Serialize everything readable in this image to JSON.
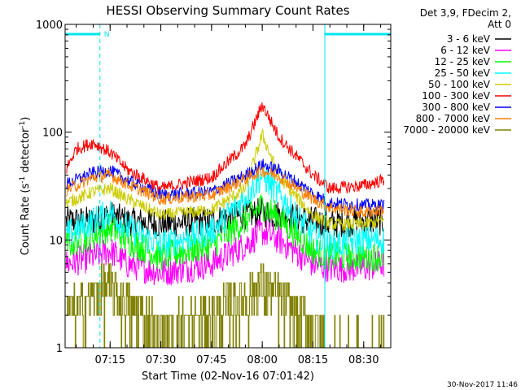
{
  "chart_data": {
    "type": "line",
    "title": "HESSI Observing Summary Count Rates",
    "xlabel": "Start Time (02-Nov-16 07:01:42)",
    "ylabel_main": "Count Rate (s",
    "ylabel_sup1": "-1",
    "ylabel_mid": " detector",
    "ylabel_sup2": "-1",
    "ylabel_end": ")",
    "y_scale": "log",
    "ylim": [
      1,
      1000
    ],
    "xlim": [
      "07:01:42",
      "08:38:00"
    ],
    "x_ticks": [
      "07:15",
      "07:30",
      "07:45",
      "08:00",
      "08:15",
      "08:30"
    ],
    "y_ticks": [
      "1",
      "10",
      "100",
      "1000"
    ],
    "legend_header": [
      "Det 3,9, FDecim 2,",
      "Att 0"
    ],
    "legend_placement": "right",
    "footer_timestamp": "30-Nov-2017 11:46",
    "annotations": [
      {
        "text": "N",
        "color": "#00e5ee"
      }
    ],
    "night_intervals": [
      [
        "07:01:42",
        "07:12:00"
      ],
      [
        "08:18:30",
        "08:38:00"
      ]
    ],
    "series": [
      {
        "name": "3 - 6 keV",
        "color": "#000000",
        "x": [
          "07:02",
          "07:10",
          "07:15",
          "07:20",
          "07:30",
          "07:45",
          "07:55",
          "08:00",
          "08:05",
          "08:15",
          "08:20",
          "08:30",
          "08:36"
        ],
        "values": [
          15,
          15,
          17,
          15,
          14,
          15,
          17,
          18,
          17,
          15,
          14,
          15,
          15
        ]
      },
      {
        "name": "6 - 12 keV",
        "color": "#ff00ff",
        "x": [
          "07:02",
          "07:10",
          "07:15",
          "07:20",
          "07:30",
          "07:45",
          "07:55",
          "08:00",
          "08:05",
          "08:15",
          "08:20",
          "08:30",
          "08:36"
        ],
        "values": [
          6,
          7,
          8,
          6,
          5,
          6,
          9,
          12,
          10,
          6,
          5.5,
          5.5,
          6
        ]
      },
      {
        "name": "12 - 25 keV",
        "color": "#00ff00",
        "x": [
          "07:02",
          "07:10",
          "07:15",
          "07:20",
          "07:30",
          "07:45",
          "07:55",
          "08:00",
          "08:05",
          "08:15",
          "08:20",
          "08:30",
          "08:36"
        ],
        "values": [
          9,
          11,
          13,
          10,
          7,
          9,
          15,
          21,
          16,
          8,
          7,
          7,
          7
        ]
      },
      {
        "name": "25 - 50 keV",
        "color": "#00ffff",
        "x": [
          "07:02",
          "07:10",
          "07:15",
          "07:20",
          "07:30",
          "07:45",
          "07:55",
          "08:00",
          "08:05",
          "08:15",
          "08:20",
          "08:30",
          "08:36"
        ],
        "values": [
          11,
          15,
          18,
          13,
          9,
          12,
          25,
          40,
          26,
          11,
          9,
          10,
          10
        ]
      },
      {
        "name": "50 - 100 keV",
        "color": "#cccc00",
        "x": [
          "07:02",
          "07:10",
          "07:15",
          "07:20",
          "07:30",
          "07:45",
          "07:55",
          "08:00",
          "08:05",
          "08:15",
          "08:20",
          "08:30",
          "08:36"
        ],
        "values": [
          22,
          28,
          30,
          24,
          17,
          19,
          30,
          95,
          38,
          17,
          14,
          14,
          15
        ]
      },
      {
        "name": "100 - 300 keV",
        "color": "#ff0000",
        "x": [
          "07:02",
          "07:05",
          "07:10",
          "07:15",
          "07:20",
          "07:30",
          "07:45",
          "07:55",
          "08:00",
          "08:05",
          "08:15",
          "08:20",
          "08:30",
          "08:36"
        ],
        "values": [
          45,
          70,
          80,
          65,
          45,
          30,
          38,
          75,
          180,
          90,
          40,
          30,
          32,
          36
        ]
      },
      {
        "name": "300 - 800 keV",
        "color": "#0000ff",
        "x": [
          "07:02",
          "07:10",
          "07:15",
          "07:20",
          "07:30",
          "07:45",
          "07:55",
          "08:00",
          "08:05",
          "08:15",
          "08:20",
          "08:30",
          "08:36"
        ],
        "values": [
          33,
          42,
          44,
          36,
          26,
          28,
          40,
          50,
          44,
          27,
          22,
          21,
          21
        ]
      },
      {
        "name": "800 - 7000 keV",
        "color": "#ff8000",
        "x": [
          "07:02",
          "07:10",
          "07:15",
          "07:20",
          "07:30",
          "07:45",
          "07:55",
          "08:00",
          "08:05",
          "08:15",
          "08:20",
          "08:30",
          "08:36"
        ],
        "values": [
          29,
          38,
          40,
          33,
          24,
          26,
          37,
          44,
          39,
          24,
          20,
          18,
          19
        ]
      },
      {
        "name": "7000 - 20000 keV",
        "color": "#808000",
        "x": [
          "07:02",
          "07:10",
          "07:15",
          "07:20",
          "07:30",
          "07:45",
          "07:55",
          "08:00",
          "08:05",
          "08:15",
          "08:20",
          "08:30",
          "08:36"
        ],
        "values": [
          2,
          3,
          4,
          2.5,
          1.5,
          2,
          3,
          4,
          3,
          1.5,
          1,
          1,
          1
        ]
      }
    ]
  }
}
